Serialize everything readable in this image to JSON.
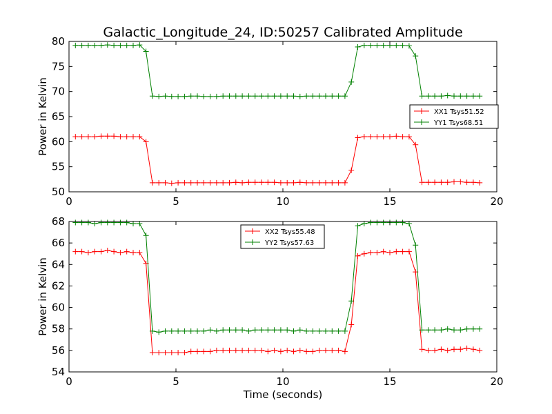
{
  "chart_data": {
    "type": "line",
    "title": "Galactic_Longitude_24, ID:50257 Calibrated Amplitude",
    "xlabel": "Time (seconds)",
    "grid": false,
    "colors": {
      "red": "#ff0000",
      "green": "#008000"
    },
    "x": [
      0.3,
      0.6,
      0.9,
      1.2,
      1.5,
      1.8,
      2.1,
      2.4,
      2.7,
      3.0,
      3.3,
      3.6,
      3.9,
      4.2,
      4.5,
      4.8,
      5.1,
      5.4,
      5.7,
      6.0,
      6.3,
      6.6,
      6.9,
      7.2,
      7.5,
      7.8,
      8.1,
      8.4,
      8.7,
      9.0,
      9.3,
      9.6,
      9.9,
      10.2,
      10.5,
      10.8,
      11.1,
      11.4,
      11.7,
      12.0,
      12.3,
      12.6,
      12.9,
      13.2,
      13.5,
      13.8,
      14.1,
      14.4,
      14.7,
      15.0,
      15.3,
      15.6,
      15.9,
      16.2,
      16.5,
      16.8,
      17.1,
      17.4,
      17.7,
      18.0,
      18.3,
      18.6,
      18.9,
      19.2
    ],
    "panels": [
      {
        "ylabel": "Power in Kelvin",
        "xlim": [
          0,
          20
        ],
        "ylim": [
          50,
          80
        ],
        "xticks": [
          0,
          5,
          10,
          15,
          20
        ],
        "yticks": [
          50,
          55,
          60,
          65,
          70,
          75,
          80
        ],
        "legend_placement": "right",
        "series": [
          {
            "name": "XX1 Tsys51.52",
            "color": "#ff0000",
            "values": [
              61.0,
              61.0,
              61.0,
              61.0,
              61.1,
              61.1,
              61.1,
              61.0,
              61.0,
              61.0,
              61.0,
              60.0,
              51.8,
              51.8,
              51.8,
              51.7,
              51.8,
              51.8,
              51.8,
              51.8,
              51.8,
              51.8,
              51.8,
              51.8,
              51.8,
              51.9,
              51.8,
              51.9,
              51.9,
              51.9,
              51.9,
              51.9,
              51.8,
              51.8,
              51.8,
              51.9,
              51.8,
              51.8,
              51.8,
              51.8,
              51.8,
              51.8,
              51.8,
              54.3,
              60.8,
              61.0,
              61.0,
              61.0,
              61.0,
              61.0,
              61.1,
              61.0,
              61.0,
              59.4,
              51.9,
              51.9,
              51.9,
              51.9,
              51.9,
              52.0,
              52.0,
              51.9,
              51.9,
              51.8
            ]
          },
          {
            "name": "YY1 Tsys68.51",
            "color": "#008000",
            "values": [
              79.2,
              79.2,
              79.2,
              79.2,
              79.2,
              79.3,
              79.2,
              79.2,
              79.2,
              79.2,
              79.3,
              78.0,
              69.1,
              69.0,
              69.1,
              69.0,
              69.0,
              69.0,
              69.1,
              69.1,
              69.0,
              69.0,
              69.0,
              69.1,
              69.1,
              69.1,
              69.1,
              69.1,
              69.1,
              69.1,
              69.1,
              69.1,
              69.1,
              69.1,
              69.1,
              69.0,
              69.1,
              69.1,
              69.1,
              69.1,
              69.1,
              69.1,
              69.1,
              71.9,
              78.9,
              79.2,
              79.2,
              79.2,
              79.2,
              79.2,
              79.2,
              79.2,
              79.1,
              77.1,
              69.1,
              69.1,
              69.1,
              69.1,
              69.2,
              69.1,
              69.1,
              69.1,
              69.1,
              69.1
            ]
          }
        ]
      },
      {
        "ylabel": "Power in Kelvin",
        "xlim": [
          0,
          20
        ],
        "ylim": [
          54,
          68
        ],
        "xticks": [
          0,
          5,
          10,
          15,
          20
        ],
        "yticks": [
          54,
          56,
          58,
          60,
          62,
          64,
          66,
          68
        ],
        "legend_placement": "top-center",
        "series": [
          {
            "name": "XX2 Tsys55.48",
            "color": "#ff0000",
            "values": [
              65.2,
              65.2,
              65.1,
              65.2,
              65.2,
              65.3,
              65.2,
              65.1,
              65.2,
              65.1,
              65.1,
              64.1,
              55.8,
              55.8,
              55.8,
              55.8,
              55.8,
              55.8,
              55.9,
              55.9,
              55.9,
              55.9,
              56.0,
              56.0,
              56.0,
              56.0,
              56.0,
              56.0,
              56.0,
              56.0,
              55.9,
              56.0,
              55.9,
              56.0,
              55.9,
              56.0,
              55.9,
              55.9,
              56.0,
              56.0,
              56.0,
              56.0,
              55.9,
              58.4,
              64.8,
              65.0,
              65.1,
              65.1,
              65.2,
              65.1,
              65.2,
              65.2,
              65.2,
              63.3,
              56.1,
              56.0,
              56.0,
              56.1,
              56.0,
              56.1,
              56.1,
              56.2,
              56.1,
              56.0
            ]
          },
          {
            "name": "YY2 Tsys57.63",
            "color": "#008000",
            "values": [
              67.9,
              67.9,
              67.9,
              67.8,
              67.9,
              67.9,
              67.9,
              67.9,
              67.9,
              67.8,
              67.8,
              66.7,
              57.8,
              57.7,
              57.8,
              57.8,
              57.8,
              57.8,
              57.8,
              57.8,
              57.8,
              57.9,
              57.8,
              57.9,
              57.9,
              57.9,
              57.9,
              57.8,
              57.9,
              57.9,
              57.9,
              57.9,
              57.9,
              57.9,
              57.8,
              57.9,
              57.8,
              57.8,
              57.8,
              57.8,
              57.8,
              57.8,
              57.8,
              60.6,
              67.6,
              67.8,
              67.9,
              67.9,
              67.9,
              67.9,
              67.9,
              67.9,
              67.8,
              65.8,
              57.9,
              57.9,
              57.9,
              57.9,
              58.0,
              57.9,
              57.9,
              58.0,
              58.0,
              58.0
            ]
          }
        ]
      }
    ]
  }
}
